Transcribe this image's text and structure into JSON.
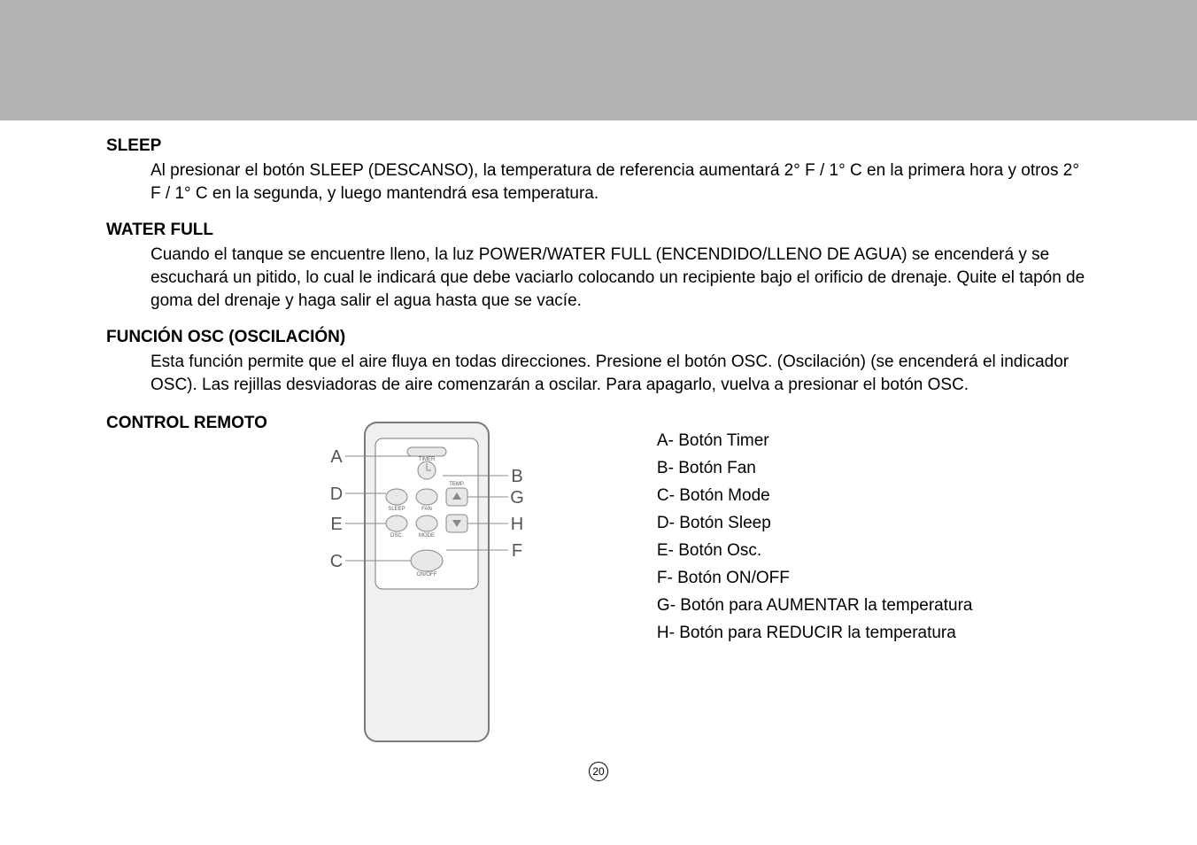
{
  "sections": {
    "sleep": {
      "title": "SLEEP",
      "body": "Al presionar el botón SLEEP (DESCANSO), la temperatura de referencia aumentará 2° F / 1° C en la primera hora y otros 2° F / 1° C en la segunda, y luego mantendrá esa temperatura."
    },
    "water_full": {
      "title": "WATER FULL",
      "body": "Cuando el tanque se encuentre lleno, la luz POWER/WATER FULL (ENCENDIDO/LLENO DE AGUA) se encenderá y se escuchará un pitido, lo cual le indicará que debe vaciarlo colocando un recipiente bajo el orificio de drenaje. Quite el tapón de goma del drenaje y haga salir el agua hasta que se vacíe."
    },
    "osc": {
      "title": "FUNCIÓN OSC (OSCILACIÓN)",
      "body": "Esta función permite que el aire fluya en todas direcciones. Presione el botón OSC. (Oscilación) (se encenderá el indicador OSC). Las rejillas desviadoras de aire comenzarán a oscilar. Para apagarlo, vuelva a presionar el botón OSC."
    },
    "remote": {
      "title": "CONTROL REMOTO",
      "legend": {
        "a": "A- Botón Timer",
        "b": "B- Botón Fan",
        "c": "C- Botón Mode",
        "d": "D- Botón Sleep",
        "e": "E- Botón Osc.",
        "f": "F- Botón ON/OFF",
        "g": "G- Botón para AUMENTAR la temperatura",
        "h": "H- Botón para REDUCIR la temperatura"
      }
    }
  },
  "remote_diagram": {
    "labels_left": [
      "A",
      "D",
      "E",
      "C"
    ],
    "labels_right": [
      "B",
      "G",
      "H",
      "F"
    ],
    "button_labels": {
      "timer": "TIMER",
      "sleep": "SLEEP",
      "fan": "FAN",
      "temp": "TEMP.",
      "osc": "OSC.",
      "mode": "MODE",
      "onoff": "ON/OFF"
    },
    "colors": {
      "outline": "#7a7a7a",
      "body_fill": "#f0f0f0",
      "button_fill": "#e8e8e8",
      "button_stroke": "#888888",
      "label_text": "#606060",
      "callout_letter": "#555555",
      "callout_line": "#888888"
    },
    "label_font_size": 6,
    "letter_font_size": 20
  },
  "page_number": "20"
}
